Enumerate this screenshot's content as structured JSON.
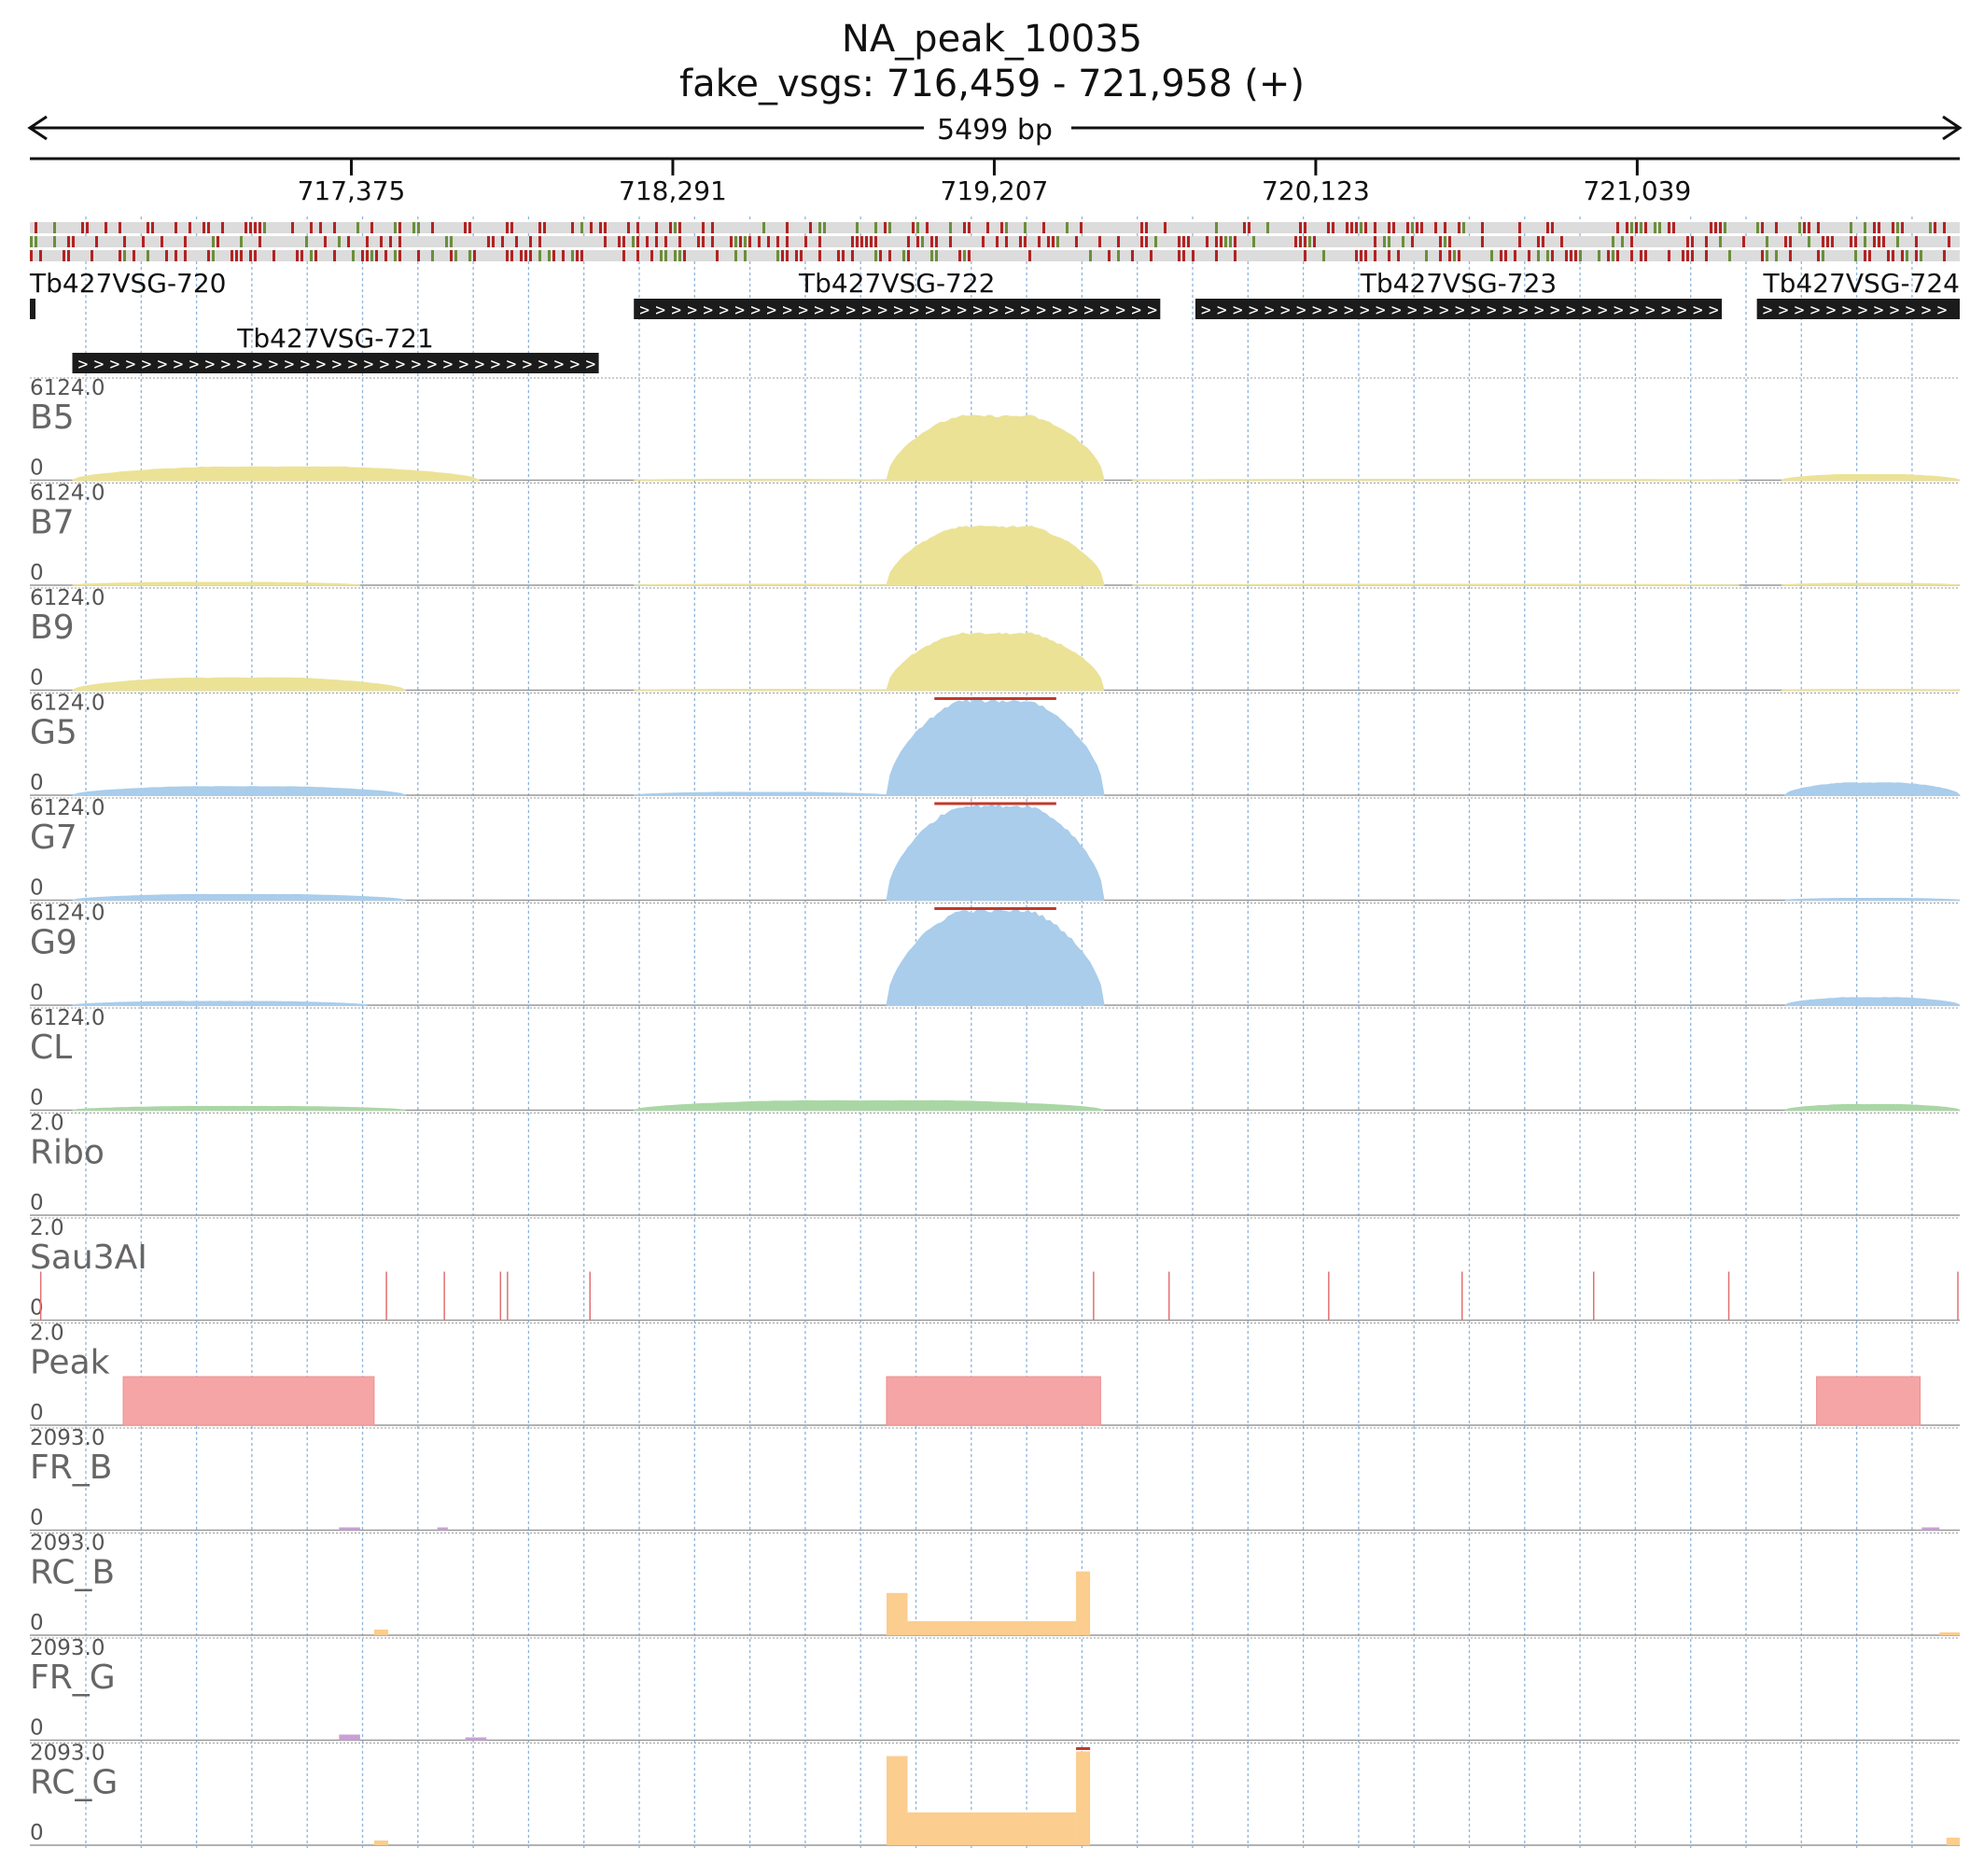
{
  "header": {
    "title": "NA_peak_10035",
    "subtitle": "fake_vsgs: 716,459 - 721,958 (+)"
  },
  "ruler": {
    "span_label": "5499 bp",
    "start": 716459,
    "end": 721958,
    "ticks": [
      "717,375",
      "718,291",
      "719,207",
      "720,123",
      "721,039"
    ],
    "tick_positions": [
      717375,
      718291,
      719207,
      720123,
      721039
    ]
  },
  "colors": {
    "bloodstream": "#ebe296",
    "bloodstream_edge": "#d6cc72",
    "procyclic": "#a9cdeb",
    "procyclic_edge": "#7fb0da",
    "culture": "#a9d7a4",
    "peak": "#f5a5a5",
    "restriction": "#e27070",
    "readcount": "#fbcd8e",
    "fragment": "#c9a0d6",
    "saturation": "#c0392b",
    "snp_red": "#b22222",
    "snp_green": "#6b8e3a",
    "gene_box": "#1b1b1b",
    "grid": "#8db4dc"
  },
  "genes": [
    {
      "name": "Tb427VSG-720",
      "start": 716459,
      "end": 716475,
      "row": 0
    },
    {
      "name": "Tb427VSG-721",
      "start": 716580,
      "end": 718080,
      "row": 1
    },
    {
      "name": "Tb427VSG-722",
      "start": 718180,
      "end": 719680,
      "row": 0
    },
    {
      "name": "Tb427VSG-723",
      "start": 719780,
      "end": 721280,
      "row": 0
    },
    {
      "name": "Tb427VSG-724",
      "start": 721380,
      "end": 721958,
      "row": 0
    }
  ],
  "tracks": [
    {
      "name": "B5",
      "max": "6124.0",
      "zero": "0",
      "kind": "coverage",
      "color": "bloodstream",
      "segments": [
        [
          716580,
          717740,
          0.14
        ],
        [
          718180,
          718900,
          0.01
        ],
        [
          718900,
          719520,
          0.68
        ],
        [
          719600,
          721330,
          0.01
        ],
        [
          721450,
          721958,
          0.06
        ]
      ]
    },
    {
      "name": "B7",
      "max": "6124.0",
      "zero": "0",
      "kind": "coverage",
      "color": "bloodstream",
      "segments": [
        [
          716580,
          717400,
          0.03
        ],
        [
          718180,
          718900,
          0.01
        ],
        [
          718900,
          719520,
          0.62
        ],
        [
          719600,
          721330,
          0.01
        ],
        [
          721450,
          721958,
          0.02
        ]
      ]
    },
    {
      "name": "B9",
      "max": "6124.0",
      "zero": "0",
      "kind": "coverage",
      "color": "bloodstream",
      "segments": [
        [
          716580,
          717530,
          0.13
        ],
        [
          718180,
          718900,
          0.01
        ],
        [
          718900,
          719520,
          0.6
        ],
        [
          721450,
          721958,
          0.01
        ]
      ]
    },
    {
      "name": "G5",
      "max": "6124.0",
      "zero": "0",
      "kind": "coverage",
      "color": "procyclic",
      "saturated": true,
      "segments": [
        [
          716580,
          717530,
          0.09
        ],
        [
          718180,
          718900,
          0.03
        ],
        [
          718900,
          719520,
          1.0
        ],
        [
          721460,
          721958,
          0.13
        ]
      ]
    },
    {
      "name": "G7",
      "max": "6124.0",
      "zero": "0",
      "kind": "coverage",
      "color": "procyclic",
      "saturated": true,
      "segments": [
        [
          716580,
          717530,
          0.06
        ],
        [
          718900,
          719520,
          1.0
        ],
        [
          721460,
          721958,
          0.02
        ]
      ]
    },
    {
      "name": "G9",
      "max": "6124.0",
      "zero": "0",
      "kind": "coverage",
      "color": "procyclic",
      "saturated": true,
      "segments": [
        [
          716580,
          717420,
          0.04
        ],
        [
          718900,
          719520,
          1.0
        ],
        [
          721460,
          721958,
          0.08
        ]
      ]
    },
    {
      "name": "CL",
      "max": "6124.0",
      "zero": "0",
      "kind": "coverage",
      "color": "culture",
      "segments": [
        [
          716580,
          717530,
          0.04
        ],
        [
          718180,
          719520,
          0.1
        ],
        [
          721460,
          721958,
          0.06
        ]
      ]
    },
    {
      "name": "Ribo",
      "max": "2.0",
      "zero": "0",
      "kind": "empty"
    },
    {
      "name": "Sau3AI",
      "max": "2.0",
      "zero": "0",
      "kind": "sites",
      "color": "restriction",
      "sites": [
        716490,
        717475,
        717640,
        717800,
        717820,
        718055,
        719490,
        719705,
        720160,
        720540,
        720915,
        721300,
        721958
      ]
    },
    {
      "name": "Peak",
      "max": "2.0",
      "zero": "0",
      "kind": "peaks",
      "color": "peak",
      "peaks": [
        [
          716725,
          717440
        ],
        [
          718900,
          719510
        ],
        [
          721550,
          721845
        ]
      ]
    },
    {
      "name": "FR_B",
      "max": "2093.0",
      "zero": "0",
      "kind": "readcount",
      "color": "fragment",
      "bumps": [
        [
          717340,
          717400,
          0.03
        ],
        [
          717620,
          717650,
          0.02
        ],
        [
          721850,
          721900,
          0.02
        ]
      ]
    },
    {
      "name": "RC_B",
      "max": "2093.0",
      "zero": "0",
      "kind": "readcount",
      "color": "readcount",
      "bumps": [
        [
          717440,
          717480,
          0.06
        ],
        [
          718900,
          718960,
          0.45
        ],
        [
          718960,
          719440,
          0.15
        ],
        [
          719440,
          719480,
          0.68
        ],
        [
          721900,
          721958,
          0.03
        ]
      ]
    },
    {
      "name": "FR_G",
      "max": "2093.0",
      "zero": "0",
      "kind": "readcount",
      "color": "fragment",
      "bumps": [
        [
          717340,
          717400,
          0.06
        ],
        [
          717700,
          717760,
          0.01
        ]
      ]
    },
    {
      "name": "RC_G",
      "max": "2093.0",
      "zero": "0",
      "kind": "readcount",
      "color": "readcount",
      "saturated": true,
      "bumps": [
        [
          717440,
          717480,
          0.05
        ],
        [
          718900,
          718960,
          0.95
        ],
        [
          718960,
          719440,
          0.35
        ],
        [
          719440,
          719480,
          1.0
        ],
        [
          721920,
          721958,
          0.08
        ]
      ]
    }
  ]
}
